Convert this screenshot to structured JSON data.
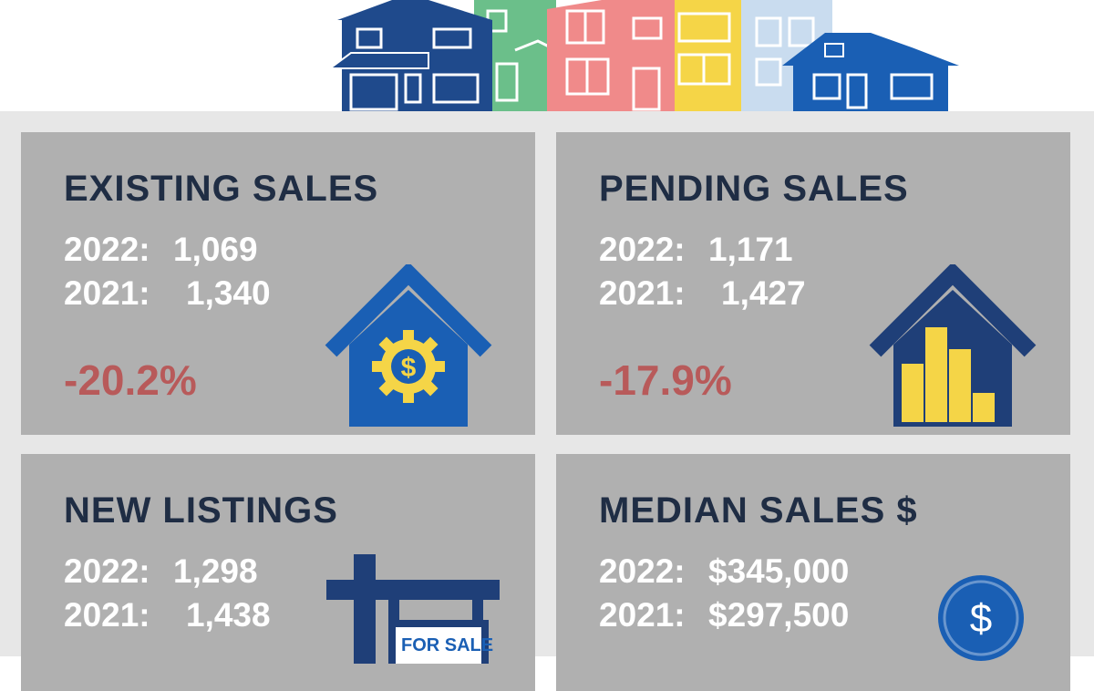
{
  "colors": {
    "navy": "#1f4a8c",
    "dark_navy": "#1f2d44",
    "blue": "#1a5fb4",
    "green": "#6bbf8a",
    "pink": "#f08a8a",
    "yellow": "#f5d547",
    "light_blue": "#c9dcef",
    "card_gray": "#b0b0b0",
    "negative_red": "#b85a5a"
  },
  "cards": {
    "existing": {
      "title": "EXISTING SALES",
      "y2022_label": "2022:",
      "y2022_value": "1,069",
      "y2021_label": "2021:",
      "y2021_value": "1,340",
      "change": "-20.2%",
      "icon": "house-gear-dollar-icon"
    },
    "pending": {
      "title": "PENDING SALES",
      "y2022_label": "2022:",
      "y2022_value": "1,171",
      "y2021_label": "2021:",
      "y2021_value": "1,427",
      "change": "-17.9%",
      "icon": "house-bar-chart-icon"
    },
    "new_listings": {
      "title": "NEW LISTINGS",
      "y2022_label": "2022:",
      "y2022_value": "1,298",
      "y2021_label": "2021:",
      "y2021_value": "1,438",
      "icon": "for-sale-sign-icon",
      "sign_text": "FOR SALE"
    },
    "median": {
      "title": "MEDIAN SALES $",
      "y2022_label": "2022:",
      "y2022_value": "$345,000",
      "y2021_label": "2021:",
      "y2021_value": "$297,500",
      "icon": "dollar-coin-icon",
      "coin_symbol": "$"
    }
  }
}
